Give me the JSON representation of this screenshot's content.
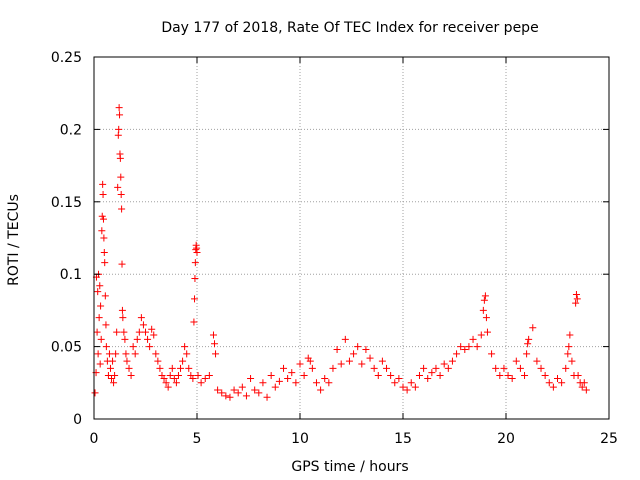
{
  "chart_data": {
    "type": "scatter",
    "title": "Day 177 of 2018, Rate Of TEC Index for receiver pepe",
    "xlabel": "GPS time / hours",
    "ylabel": "ROTI / TECUs",
    "xlim": [
      0,
      25
    ],
    "ylim": [
      0,
      0.25
    ],
    "x_ticks": [
      0,
      5,
      10,
      15,
      20,
      25
    ],
    "x_tick_labels": [
      "0",
      "5",
      "10",
      "15",
      "20",
      "25"
    ],
    "y_ticks": [
      0,
      0.05,
      0.1,
      0.15,
      0.2,
      0.25
    ],
    "y_tick_labels": [
      "0",
      "0.05",
      "0.1",
      "0.15",
      "0.2",
      "0.25"
    ],
    "grid": true,
    "marker": "+",
    "color": "#ff0000",
    "series": [
      {
        "name": "ROTI",
        "points": [
          [
            0.05,
            0.018
          ],
          [
            0.1,
            0.032
          ],
          [
            0.12,
            0.098
          ],
          [
            0.15,
            0.06
          ],
          [
            0.18,
            0.088
          ],
          [
            0.2,
            0.045
          ],
          [
            0.22,
            0.1
          ],
          [
            0.25,
            0.07
          ],
          [
            0.28,
            0.092
          ],
          [
            0.3,
            0.038
          ],
          [
            0.32,
            0.078
          ],
          [
            0.35,
            0.055
          ],
          [
            0.38,
            0.13
          ],
          [
            0.4,
            0.14
          ],
          [
            0.42,
            0.162
          ],
          [
            0.44,
            0.155
          ],
          [
            0.46,
            0.138
          ],
          [
            0.48,
            0.125
          ],
          [
            0.5,
            0.115
          ],
          [
            0.52,
            0.108
          ],
          [
            0.55,
            0.085
          ],
          [
            0.58,
            0.065
          ],
          [
            0.6,
            0.05
          ],
          [
            0.65,
            0.04
          ],
          [
            0.7,
            0.03
          ],
          [
            0.75,
            0.045
          ],
          [
            0.8,
            0.035
          ],
          [
            0.85,
            0.028
          ],
          [
            0.9,
            0.04
          ],
          [
            0.95,
            0.025
          ],
          [
            1.0,
            0.03
          ],
          [
            1.05,
            0.045
          ],
          [
            1.1,
            0.06
          ],
          [
            1.15,
            0.16
          ],
          [
            1.18,
            0.196
          ],
          [
            1.2,
            0.2
          ],
          [
            1.22,
            0.215
          ],
          [
            1.24,
            0.21
          ],
          [
            1.26,
            0.183
          ],
          [
            1.28,
            0.18
          ],
          [
            1.3,
            0.167
          ],
          [
            1.32,
            0.155
          ],
          [
            1.34,
            0.145
          ],
          [
            1.36,
            0.107
          ],
          [
            1.38,
            0.075
          ],
          [
            1.4,
            0.07
          ],
          [
            1.45,
            0.06
          ],
          [
            1.5,
            0.055
          ],
          [
            1.55,
            0.045
          ],
          [
            1.6,
            0.04
          ],
          [
            1.7,
            0.035
          ],
          [
            1.8,
            0.03
          ],
          [
            1.9,
            0.05
          ],
          [
            2.0,
            0.045
          ],
          [
            2.1,
            0.055
          ],
          [
            2.2,
            0.06
          ],
          [
            2.3,
            0.07
          ],
          [
            2.4,
            0.065
          ],
          [
            2.5,
            0.06
          ],
          [
            2.6,
            0.055
          ],
          [
            2.7,
            0.05
          ],
          [
            2.8,
            0.062
          ],
          [
            2.9,
            0.058
          ],
          [
            3.0,
            0.045
          ],
          [
            3.1,
            0.04
          ],
          [
            3.2,
            0.035
          ],
          [
            3.3,
            0.03
          ],
          [
            3.4,
            0.028
          ],
          [
            3.5,
            0.025
          ],
          [
            3.6,
            0.022
          ],
          [
            3.7,
            0.03
          ],
          [
            3.8,
            0.035
          ],
          [
            3.9,
            0.028
          ],
          [
            4.0,
            0.025
          ],
          [
            4.1,
            0.03
          ],
          [
            4.2,
            0.035
          ],
          [
            4.3,
            0.04
          ],
          [
            4.4,
            0.05
          ],
          [
            4.5,
            0.045
          ],
          [
            4.6,
            0.035
          ],
          [
            4.7,
            0.03
          ],
          [
            4.8,
            0.028
          ],
          [
            4.85,
            0.067
          ],
          [
            4.88,
            0.083
          ],
          [
            4.9,
            0.097
          ],
          [
            4.92,
            0.108
          ],
          [
            4.94,
            0.117
          ],
          [
            4.96,
            0.12
          ],
          [
            4.98,
            0.118
          ],
          [
            5.0,
            0.115
          ],
          [
            5.05,
            0.03
          ],
          [
            5.2,
            0.025
          ],
          [
            5.4,
            0.028
          ],
          [
            5.6,
            0.03
          ],
          [
            5.8,
            0.058
          ],
          [
            5.85,
            0.052
          ],
          [
            5.9,
            0.045
          ],
          [
            6.0,
            0.02
          ],
          [
            6.2,
            0.018
          ],
          [
            6.4,
            0.016
          ],
          [
            6.6,
            0.015
          ],
          [
            6.8,
            0.02
          ],
          [
            7.0,
            0.018
          ],
          [
            7.2,
            0.022
          ],
          [
            7.4,
            0.016
          ],
          [
            7.6,
            0.028
          ],
          [
            7.8,
            0.02
          ],
          [
            8.0,
            0.018
          ],
          [
            8.2,
            0.025
          ],
          [
            8.4,
            0.015
          ],
          [
            8.6,
            0.03
          ],
          [
            8.8,
            0.022
          ],
          [
            9.0,
            0.026
          ],
          [
            9.2,
            0.035
          ],
          [
            9.4,
            0.028
          ],
          [
            9.6,
            0.032
          ],
          [
            9.8,
            0.025
          ],
          [
            10.0,
            0.038
          ],
          [
            10.2,
            0.03
          ],
          [
            10.4,
            0.042
          ],
          [
            10.5,
            0.04
          ],
          [
            10.6,
            0.035
          ],
          [
            10.8,
            0.025
          ],
          [
            11.0,
            0.02
          ],
          [
            11.2,
            0.028
          ],
          [
            11.4,
            0.025
          ],
          [
            11.6,
            0.035
          ],
          [
            11.8,
            0.048
          ],
          [
            12.0,
            0.038
          ],
          [
            12.2,
            0.055
          ],
          [
            12.4,
            0.04
          ],
          [
            12.6,
            0.045
          ],
          [
            12.8,
            0.05
          ],
          [
            13.0,
            0.038
          ],
          [
            13.2,
            0.048
          ],
          [
            13.4,
            0.042
          ],
          [
            13.6,
            0.035
          ],
          [
            13.8,
            0.03
          ],
          [
            14.0,
            0.04
          ],
          [
            14.2,
            0.035
          ],
          [
            14.4,
            0.03
          ],
          [
            14.6,
            0.025
          ],
          [
            14.8,
            0.028
          ],
          [
            15.0,
            0.022
          ],
          [
            15.2,
            0.02
          ],
          [
            15.4,
            0.025
          ],
          [
            15.6,
            0.022
          ],
          [
            15.8,
            0.03
          ],
          [
            16.0,
            0.035
          ],
          [
            16.2,
            0.028
          ],
          [
            16.4,
            0.032
          ],
          [
            16.6,
            0.035
          ],
          [
            16.8,
            0.03
          ],
          [
            17.0,
            0.038
          ],
          [
            17.2,
            0.035
          ],
          [
            17.4,
            0.04
          ],
          [
            17.6,
            0.045
          ],
          [
            17.8,
            0.05
          ],
          [
            18.0,
            0.048
          ],
          [
            18.2,
            0.05
          ],
          [
            18.4,
            0.055
          ],
          [
            18.6,
            0.05
          ],
          [
            18.8,
            0.058
          ],
          [
            18.9,
            0.075
          ],
          [
            18.95,
            0.082
          ],
          [
            19.0,
            0.085
          ],
          [
            19.05,
            0.07
          ],
          [
            19.1,
            0.06
          ],
          [
            19.3,
            0.045
          ],
          [
            19.5,
            0.035
          ],
          [
            19.7,
            0.03
          ],
          [
            19.9,
            0.035
          ],
          [
            20.1,
            0.03
          ],
          [
            20.3,
            0.028
          ],
          [
            20.5,
            0.04
          ],
          [
            20.7,
            0.035
          ],
          [
            20.9,
            0.03
          ],
          [
            21.0,
            0.045
          ],
          [
            21.05,
            0.052
          ],
          [
            21.1,
            0.055
          ],
          [
            21.3,
            0.063
          ],
          [
            21.5,
            0.04
          ],
          [
            21.7,
            0.035
          ],
          [
            21.9,
            0.03
          ],
          [
            22.1,
            0.025
          ],
          [
            22.3,
            0.022
          ],
          [
            22.5,
            0.028
          ],
          [
            22.7,
            0.025
          ],
          [
            22.9,
            0.035
          ],
          [
            23.0,
            0.045
          ],
          [
            23.05,
            0.05
          ],
          [
            23.1,
            0.058
          ],
          [
            23.2,
            0.04
          ],
          [
            23.3,
            0.03
          ],
          [
            23.38,
            0.08
          ],
          [
            23.42,
            0.086
          ],
          [
            23.46,
            0.083
          ],
          [
            23.5,
            0.03
          ],
          [
            23.6,
            0.025
          ],
          [
            23.7,
            0.022
          ],
          [
            23.8,
            0.025
          ],
          [
            23.9,
            0.02
          ]
        ]
      }
    ]
  }
}
